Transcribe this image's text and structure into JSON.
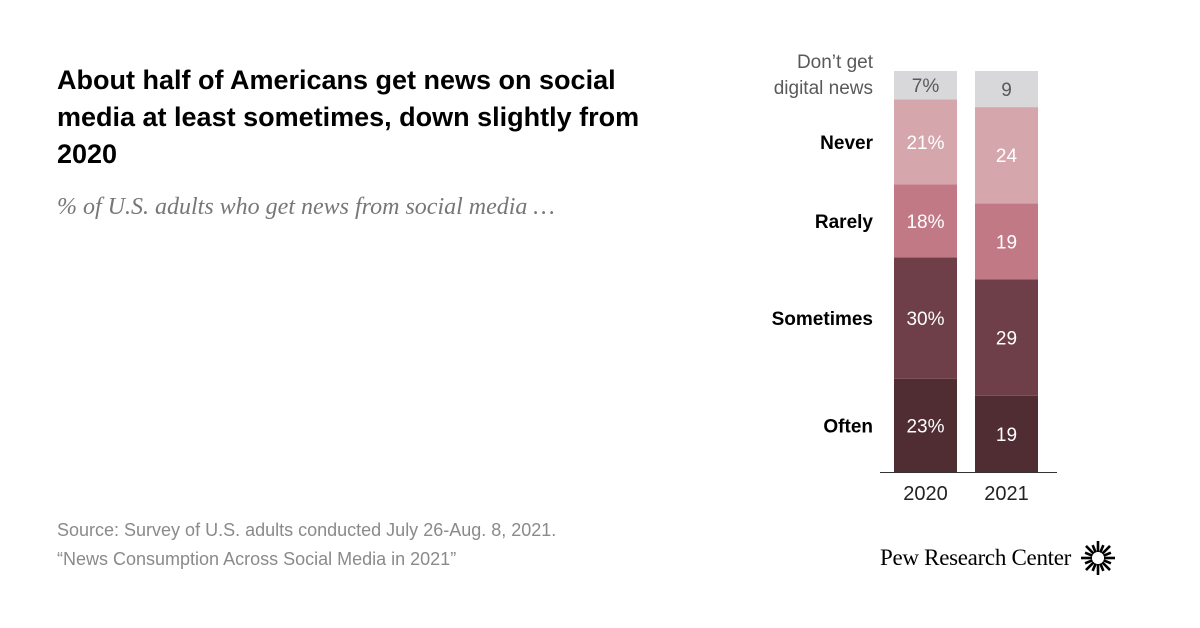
{
  "title": "About half of Americans get news on social media at least sometimes, down slightly from 2020",
  "subtitle": "% of U.S. adults who get news from social media …",
  "source": {
    "line1": "Source: Survey of U.S. adults conducted July 26-Aug. 8, 2021.",
    "line2": "“News Consumption Across Social Media in 2021”"
  },
  "brand": {
    "name": "Pew Research Center",
    "logo_icon": "pew-sunburst-icon"
  },
  "colors": {
    "dont_get": "#d8d8da",
    "never": "#d6a6ad",
    "rarely": "#c27986",
    "sometimes": "#6e3f48",
    "often": "#4f2d33",
    "label_text": "#000000",
    "value_text_light": "#ffffff",
    "value_text_dark": "#595959"
  },
  "chart_data": {
    "type": "bar",
    "stacked": true,
    "categories": [
      "2020",
      "2021"
    ],
    "series": [
      {
        "name": "Often",
        "values": [
          23,
          19
        ],
        "labels": [
          "23%",
          "19"
        ]
      },
      {
        "name": "Sometimes",
        "values": [
          30,
          29
        ],
        "labels": [
          "30%",
          "29"
        ]
      },
      {
        "name": "Rarely",
        "values": [
          18,
          19
        ],
        "labels": [
          "18%",
          "19"
        ]
      },
      {
        "name": "Never",
        "values": [
          21,
          24
        ],
        "labels": [
          "21%",
          "24"
        ]
      },
      {
        "name": "Don’t get digital news",
        "values": [
          7,
          9
        ],
        "labels": [
          "7%",
          "9"
        ]
      }
    ],
    "series_label_lines": [
      [
        "Often"
      ],
      [
        "Sometimes"
      ],
      [
        "Rarely"
      ],
      [
        "Never"
      ],
      [
        "Don’t get",
        "digital news"
      ]
    ],
    "ylim": [
      0,
      100
    ]
  }
}
